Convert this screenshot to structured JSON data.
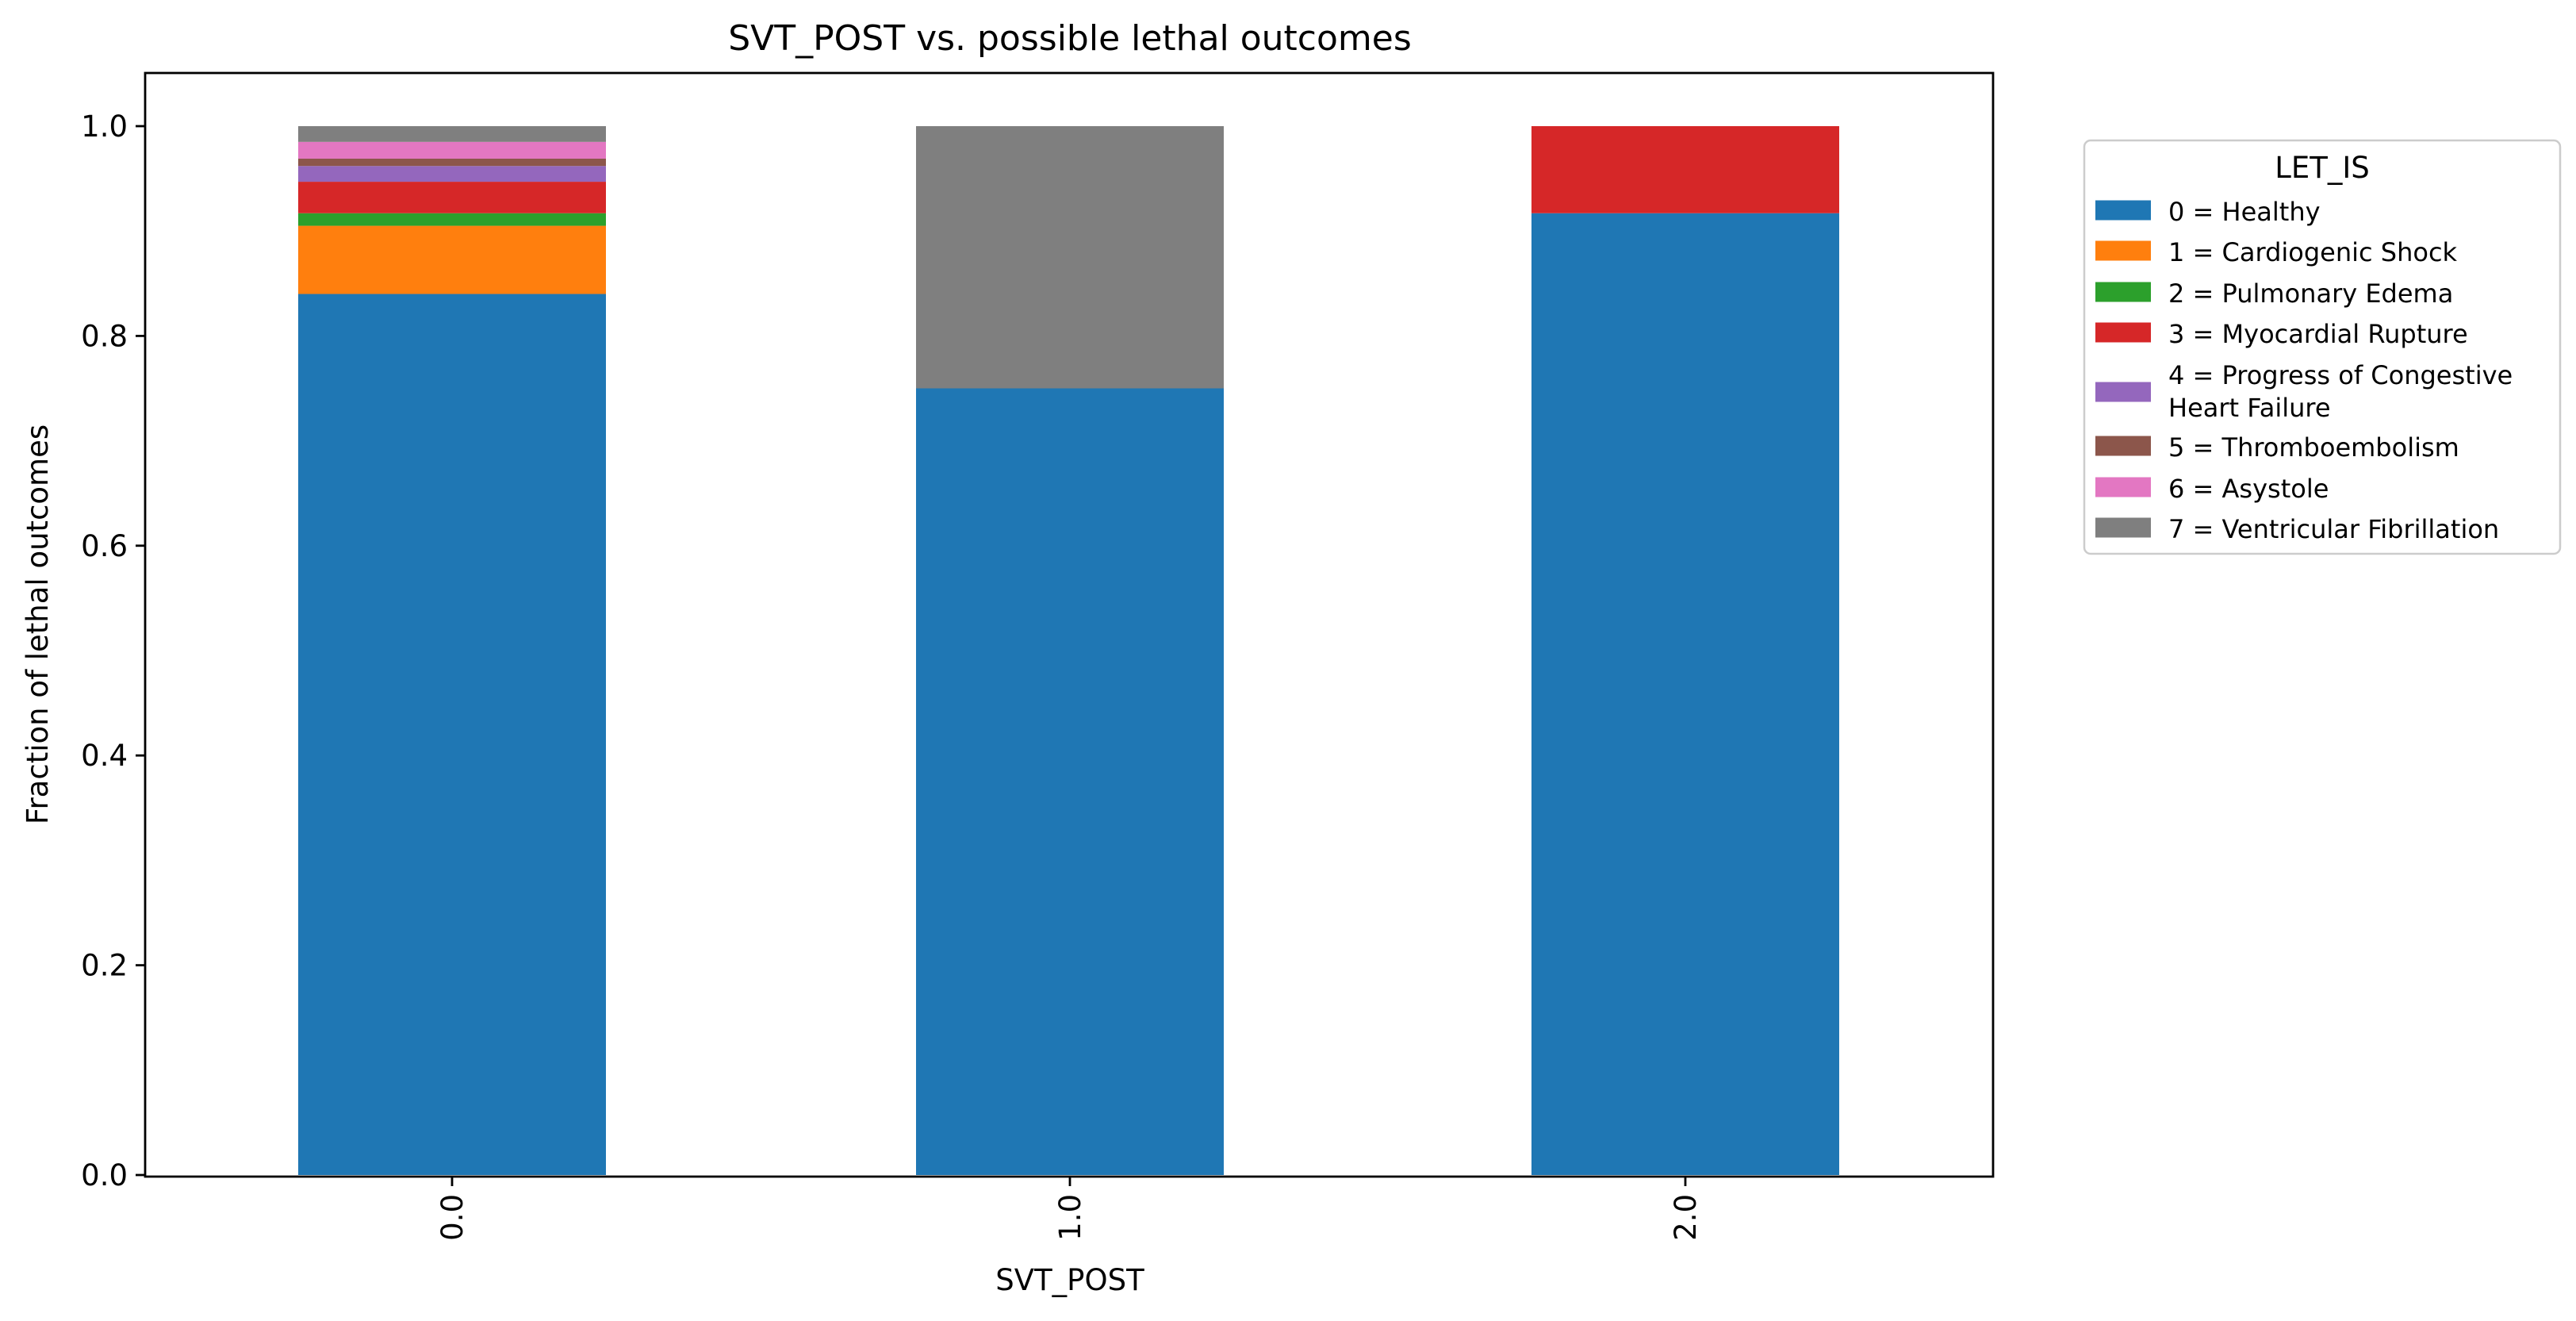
{
  "chart_data": {
    "type": "bar",
    "stacked": true,
    "title": "SVT_POST vs. possible lethal outcomes",
    "xlabel": "SVT_POST",
    "ylabel": "Fraction of lethal outcomes",
    "categories": [
      "0.0",
      "1.0",
      "2.0"
    ],
    "ylim": [
      0,
      1.05
    ],
    "yticks": [
      "0.0",
      "0.2",
      "0.4",
      "0.6",
      "0.8",
      "1.0"
    ],
    "grid": false,
    "legend": {
      "title": "LET_IS",
      "placement": "outside-right",
      "entries": [
        [
          "0 = Healthy"
        ],
        [
          "1 = Cardiogenic Shock"
        ],
        [
          "2 = Pulmonary Edema"
        ],
        [
          "3 = Myocardial Rupture"
        ],
        [
          "4 = Progress of Congestive",
          "Heart Failure"
        ],
        [
          "5 = Thromboembolism"
        ],
        [
          "6 = Asystole"
        ],
        [
          "7 = Ventricular Fibrillation"
        ]
      ]
    },
    "series": [
      {
        "name": "0 = Healthy",
        "color": "#1f77b4",
        "values": [
          0.84,
          0.75,
          0.917
        ]
      },
      {
        "name": "1 = Cardiogenic Shock",
        "color": "#ff7f0e",
        "values": [
          0.065,
          0.0,
          0.0
        ]
      },
      {
        "name": "2 = Pulmonary Edema",
        "color": "#2ca02c",
        "values": [
          0.012,
          0.0,
          0.0
        ]
      },
      {
        "name": "3 = Myocardial Rupture",
        "color": "#d62728",
        "values": [
          0.03,
          0.0,
          0.083
        ]
      },
      {
        "name": "4 = Progress of Congestive Heart Failure",
        "color": "#9467bd",
        "values": [
          0.015,
          0.0,
          0.0
        ]
      },
      {
        "name": "5 = Thromboembolism",
        "color": "#8c564b",
        "values": [
          0.007,
          0.0,
          0.0
        ]
      },
      {
        "name": "6 = Asystole",
        "color": "#e377c2",
        "values": [
          0.016,
          0.0,
          0.0
        ]
      },
      {
        "name": "7 = Ventricular Fibrillation",
        "color": "#7f7f7f",
        "values": [
          0.015,
          0.25,
          0.0
        ]
      }
    ]
  }
}
